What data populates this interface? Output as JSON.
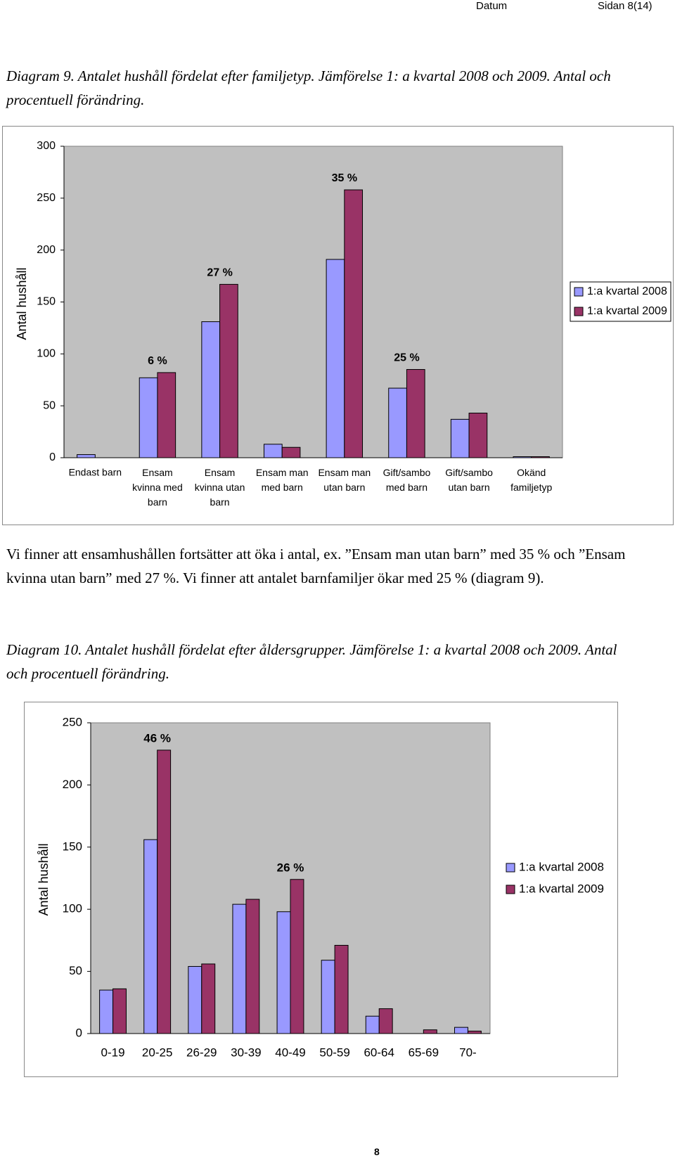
{
  "header": {
    "date": "Datum",
    "page": "Sidan 8(14)"
  },
  "caption1": "Diagram 9. Antalet hushåll fördelat efter familjetyp. Jämförelse 1: a kvartal 2008 och 2009. Antal och procentuell förändring.",
  "paragraph": "Vi finner att ensamhushållen fortsätter att öka i antal, ex. ”Ensam man utan barn” med 35 % och ”Ensam kvinna utan barn” med 27 %. Vi finner att antalet barnfamiljer ökar med 25 % (diagram 9).",
  "caption2": "Diagram 10. Antalet hushåll fördelat efter åldersgrupper. Jämförelse 1: a kvartal 2008 och 2009. Antal och procentuell förändring.",
  "footer": "8",
  "chart_data": [
    {
      "type": "bar",
      "y_label": "Antal hushåll",
      "categories": [
        "Endast barn",
        "Ensam kvinna med barn",
        "Ensam kvinna utan barn",
        "Ensam man med barn",
        "Ensam man utan barn",
        "Gift/sambo med barn",
        "Gift/sambo utan barn",
        "Okänd familjetyp"
      ],
      "series": [
        {
          "name": "1:a kvartal 2008",
          "color": "#9999ff",
          "values": [
            3,
            77,
            131,
            13,
            191,
            67,
            37,
            1
          ]
        },
        {
          "name": "1:a kvartal 2009",
          "color": "#993366",
          "values": [
            0,
            82,
            167,
            10,
            258,
            85,
            43,
            1
          ]
        }
      ],
      "annotations": [
        {
          "text": "6 %",
          "category": "Ensam kvinna med barn"
        },
        {
          "text": "27 %",
          "category": "Ensam kvinna utan barn"
        },
        {
          "text": "35 %",
          "category": "Ensam man utan barn"
        },
        {
          "text": "25 %",
          "category": "Gift/sambo med barn"
        }
      ],
      "ylim": [
        0,
        300
      ],
      "yticks": [
        0,
        50,
        100,
        150,
        200,
        250,
        300
      ],
      "legend": "right",
      "legend_border": true,
      "background": "#c0c0c0"
    },
    {
      "type": "bar",
      "y_label": "Antal hushåll",
      "categories": [
        "0-19",
        "20-25",
        "26-29",
        "30-39",
        "40-49",
        "50-59",
        "60-64",
        "65-69",
        "70-"
      ],
      "series": [
        {
          "name": "1:a kvartal 2008",
          "color": "#9999ff",
          "values": [
            35,
            156,
            54,
            104,
            98,
            59,
            14,
            0,
            5
          ]
        },
        {
          "name": "1:a kvartal 2009",
          "color": "#993366",
          "values": [
            36,
            228,
            56,
            108,
            124,
            71,
            20,
            3,
            2
          ]
        }
      ],
      "annotations": [
        {
          "text": "46 %",
          "category": "20-25"
        },
        {
          "text": "26 %",
          "category": "40-49"
        }
      ],
      "ylim": [
        0,
        250
      ],
      "yticks": [
        0,
        50,
        100,
        150,
        200,
        250
      ],
      "legend": "right",
      "legend_border": false,
      "background": "#c0c0c0"
    }
  ]
}
